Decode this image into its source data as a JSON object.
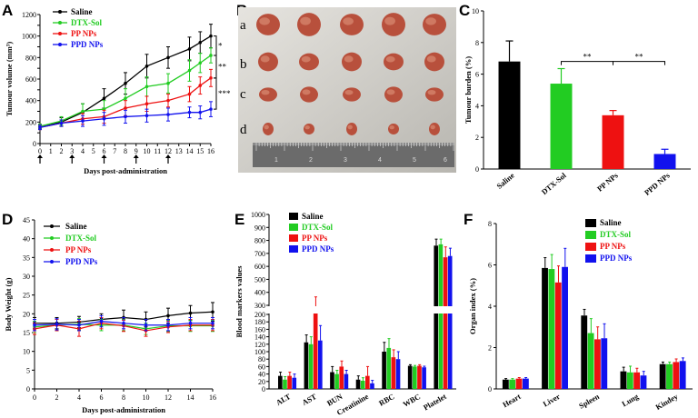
{
  "figure": {
    "panels": [
      "A",
      "B",
      "C",
      "D",
      "E",
      "F"
    ],
    "colors": {
      "saline": "#000000",
      "dtx": "#22cc22",
      "pp": "#ee1111",
      "ppd": "#1111ee"
    }
  },
  "photo": {
    "row_labels": [
      "a",
      "b",
      "c",
      "d"
    ],
    "ruler_numbers": [
      "1",
      "2",
      "3",
      "4",
      "5",
      "6"
    ]
  },
  "chart_data": [
    {
      "id": "A",
      "type": "line",
      "title": "",
      "xlabel": "Days post-administration",
      "ylabel": "Tumour volume (mm³)",
      "ylim": [
        0,
        1200
      ],
      "xlim": [
        0,
        16
      ],
      "yticks": [
        "0",
        "100",
        "200",
        "300",
        "400",
        "500",
        "600",
        "700",
        "800",
        "900",
        "1000",
        "1100",
        "1200"
      ],
      "xticks": [
        "0",
        "1",
        "2",
        "3",
        "4",
        "5",
        "6",
        "7",
        "8",
        "9",
        "10",
        "11",
        "12",
        "13",
        "14",
        "15",
        "16"
      ],
      "x": [
        0,
        2,
        4,
        6,
        8,
        10,
        12,
        14,
        15,
        16
      ],
      "series": [
        {
          "name": "Saline",
          "values": [
            160,
            200,
            290,
            420,
            560,
            720,
            800,
            880,
            940,
            1000
          ],
          "err": [
            20,
            40,
            80,
            90,
            100,
            110,
            100,
            110,
            100,
            110
          ]
        },
        {
          "name": "DTX-Sol",
          "values": [
            160,
            210,
            300,
            320,
            420,
            530,
            560,
            680,
            750,
            820
          ],
          "err": [
            20,
            40,
            70,
            80,
            90,
            90,
            90,
            100,
            90,
            70
          ]
        },
        {
          "name": "PP NPs",
          "values": [
            150,
            190,
            230,
            250,
            330,
            370,
            400,
            460,
            540,
            610
          ],
          "err": [
            20,
            30,
            50,
            60,
            70,
            70,
            60,
            70,
            80,
            80
          ]
        },
        {
          "name": "PPD NPs",
          "values": [
            150,
            190,
            210,
            230,
            250,
            260,
            270,
            290,
            290,
            320
          ],
          "err": [
            20,
            30,
            50,
            60,
            60,
            60,
            60,
            50,
            60,
            70
          ]
        }
      ],
      "arrows_at_days": [
        0,
        3,
        6,
        9,
        12
      ],
      "annotations": [
        "*",
        "**",
        "***"
      ]
    },
    {
      "id": "C",
      "type": "bar",
      "ylabel": "Tumour burden (%)",
      "ylim": [
        0,
        10
      ],
      "yticks": [
        "0",
        "2",
        "4",
        "6",
        "8",
        "10"
      ],
      "categories": [
        "Saline",
        "DTX-Sol",
        "PP NPs",
        "PPD NPs"
      ],
      "values": [
        6.8,
        5.4,
        3.4,
        0.95
      ],
      "err": [
        1.3,
        0.95,
        0.3,
        0.3
      ],
      "annotations": [
        "**",
        "**"
      ]
    },
    {
      "id": "D",
      "type": "line",
      "xlabel": "Days post-administration",
      "ylabel": "Body Weight (g)",
      "ylim": [
        0,
        45
      ],
      "xlim": [
        0,
        16
      ],
      "yticks": [
        "0",
        "5",
        "10",
        "15",
        "20",
        "25",
        "30",
        "35",
        "40",
        "45"
      ],
      "xticks": [
        "0",
        "2",
        "4",
        "6",
        "8",
        "10",
        "12",
        "14",
        "16"
      ],
      "x": [
        0,
        2,
        4,
        6,
        8,
        10,
        12,
        14,
        16
      ],
      "series": [
        {
          "name": "Saline",
          "values": [
            17.5,
            17.5,
            17.8,
            18.5,
            19.0,
            18.5,
            19.5,
            20.2,
            20.5
          ],
          "err": [
            1.5,
            1.5,
            1.5,
            1.5,
            2,
            2,
            2,
            2,
            2.5
          ]
        },
        {
          "name": "DTX-Sol",
          "values": [
            16.5,
            17.0,
            17.2,
            17.0,
            17.0,
            16.0,
            16.8,
            16.8,
            16.8
          ],
          "err": [
            1.5,
            1.5,
            1.5,
            1.5,
            1.5,
            1.5,
            1.5,
            1.5,
            1.5
          ]
        },
        {
          "name": "PP NPs",
          "values": [
            16.0,
            17.0,
            16.0,
            17.5,
            16.8,
            15.5,
            16.5,
            17.0,
            17.0
          ],
          "err": [
            1.5,
            1.5,
            2,
            1.5,
            1.5,
            1.5,
            1.5,
            1.5,
            1.5
          ]
        },
        {
          "name": "PPD NPs",
          "values": [
            17.0,
            17.2,
            17.0,
            18.0,
            17.5,
            17.0,
            17.0,
            17.5,
            17.5
          ],
          "err": [
            1.5,
            1.5,
            1.5,
            1.5,
            1.5,
            1.5,
            1.5,
            1.5,
            1.5
          ]
        }
      ]
    },
    {
      "id": "E",
      "type": "bar",
      "ylabel": "Blood markers values",
      "ylim": [
        0,
        1000
      ],
      "axis_break": [
        200,
        300
      ],
      "yticks": [
        "0",
        "20",
        "40",
        "60",
        "80",
        "100",
        "120",
        "140",
        "160",
        "180",
        "200",
        "300",
        "400",
        "500",
        "600",
        "700",
        "800",
        "900",
        "1000"
      ],
      "categories": [
        "ALT",
        "AST",
        "BUN",
        "Creatinine",
        "RBC",
        "WBC",
        "Platelet"
      ],
      "series": [
        {
          "name": "Saline",
          "values": [
            35,
            125,
            45,
            25,
            100,
            62,
            760
          ],
          "err": [
            10,
            20,
            15,
            10,
            25,
            3,
            50
          ]
        },
        {
          "name": "DTX-Sol",
          "values": [
            25,
            120,
            40,
            22,
            110,
            60,
            770
          ],
          "err": [
            8,
            20,
            10,
            8,
            25,
            3,
            40
          ]
        },
        {
          "name": "PP NPs",
          "values": [
            35,
            215,
            60,
            35,
            85,
            62,
            670
          ],
          "err": [
            10,
            150,
            15,
            25,
            20,
            3,
            80
          ]
        },
        {
          "name": "PPD NPs",
          "values": [
            30,
            130,
            40,
            15,
            80,
            58,
            680
          ],
          "err": [
            10,
            40,
            10,
            8,
            20,
            3,
            60
          ]
        }
      ]
    },
    {
      "id": "F",
      "type": "bar",
      "ylabel": "Organ index (%)",
      "ylim": [
        0,
        8
      ],
      "yticks": [
        "0",
        "2",
        "4",
        "6",
        "8"
      ],
      "categories": [
        "Heart",
        "Liver",
        "Spleen",
        "Lung",
        "Kindey"
      ],
      "series": [
        {
          "name": "Saline",
          "values": [
            0.45,
            5.85,
            3.55,
            0.85,
            1.2
          ],
          "err": [
            0.05,
            0.5,
            0.3,
            0.2,
            0.1
          ]
        },
        {
          "name": "DTX-Sol",
          "values": [
            0.45,
            5.8,
            2.7,
            0.8,
            1.2
          ],
          "err": [
            0.05,
            0.7,
            0.7,
            0.3,
            0.1
          ]
        },
        {
          "name": "PP NPs",
          "values": [
            0.5,
            5.15,
            2.4,
            0.8,
            1.3
          ],
          "err": [
            0.05,
            0.8,
            0.6,
            0.2,
            0.15
          ]
        },
        {
          "name": "PPD NPs",
          "values": [
            0.5,
            5.9,
            2.45,
            0.65,
            1.35
          ],
          "err": [
            0.05,
            0.9,
            0.7,
            0.2,
            0.15
          ]
        }
      ]
    }
  ]
}
